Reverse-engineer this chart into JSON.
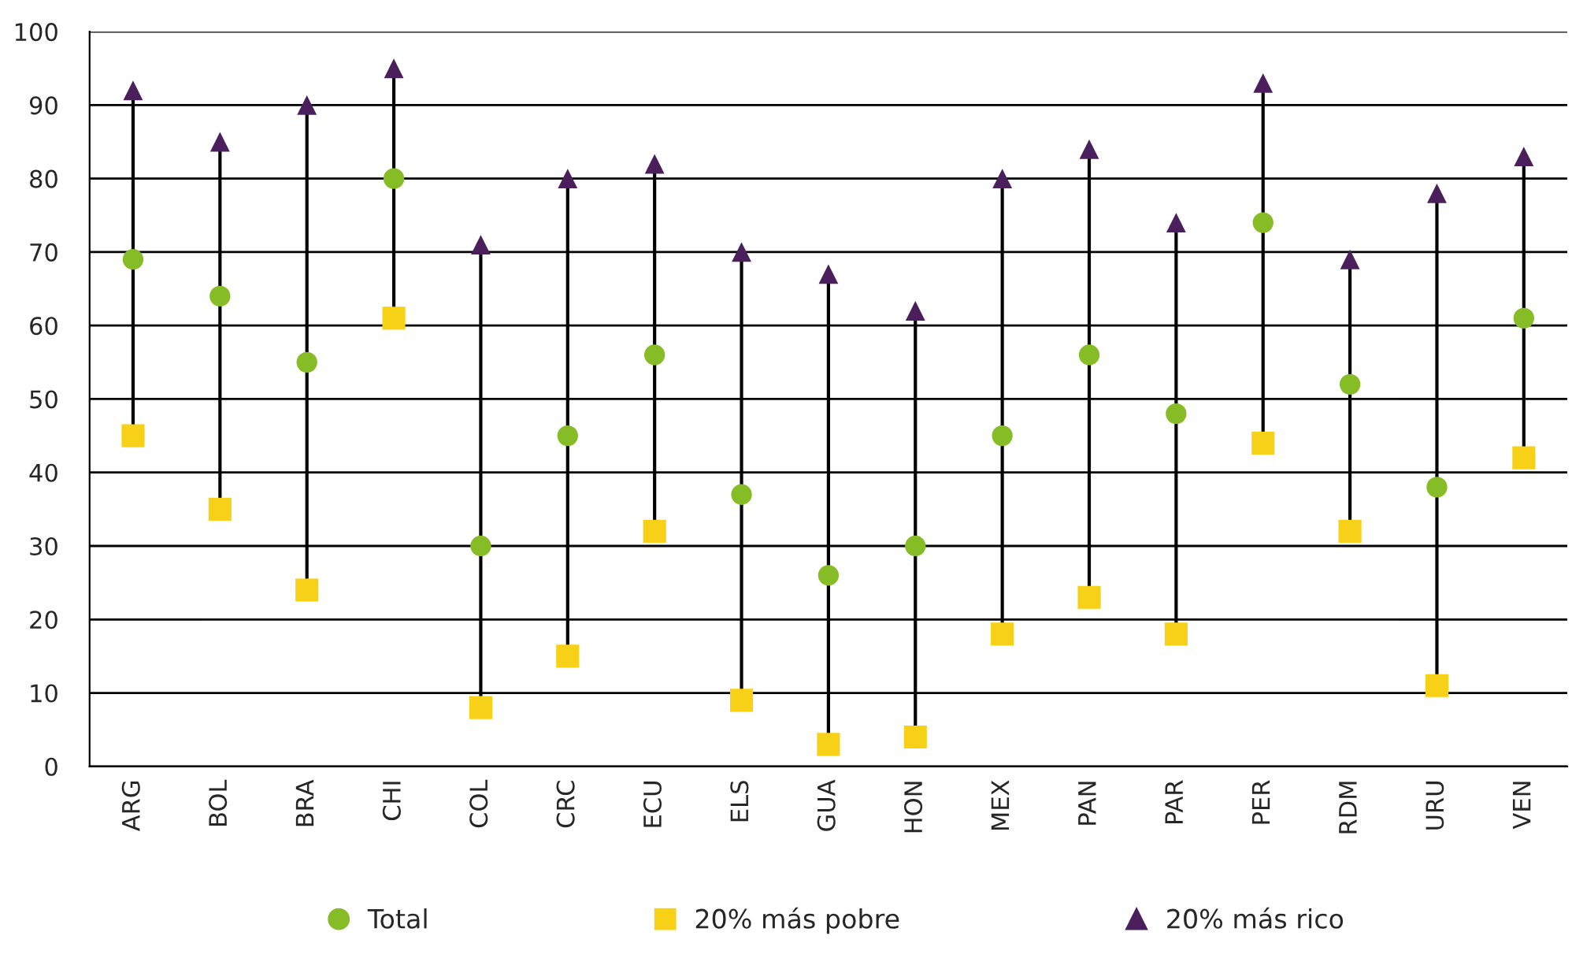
{
  "chart_data": {
    "type": "scatter",
    "categories": [
      "ARG",
      "BOL",
      "BRA",
      "CHI",
      "COL",
      "CRC",
      "ECU",
      "ELS",
      "GUA",
      "HON",
      "MEX",
      "PAN",
      "PAR",
      "PER",
      "RDM",
      "URU",
      "VEN"
    ],
    "series": [
      {
        "name": "Total",
        "color": "#86bc25",
        "marker": "circle",
        "values": [
          69,
          64,
          55,
          80,
          30,
          45,
          56,
          37,
          26,
          30,
          45,
          56,
          48,
          74,
          52,
          38,
          61
        ]
      },
      {
        "name": "20% más pobre",
        "color": "#f7d117",
        "marker": "square",
        "values": [
          45,
          35,
          24,
          61,
          8,
          15,
          32,
          9,
          3,
          4,
          18,
          23,
          18,
          44,
          32,
          11,
          42
        ]
      },
      {
        "name": "20% más rico",
        "color": "#4a1f5c",
        "marker": "triangle",
        "values": [
          92,
          85,
          90,
          95,
          71,
          80,
          82,
          70,
          67,
          62,
          80,
          84,
          74,
          93,
          69,
          78,
          83
        ]
      }
    ],
    "ylim": [
      0,
      100
    ],
    "yticks": [
      0,
      10,
      20,
      30,
      40,
      50,
      60,
      70,
      80,
      90,
      100
    ],
    "grid": "y",
    "legend": "bottom"
  }
}
